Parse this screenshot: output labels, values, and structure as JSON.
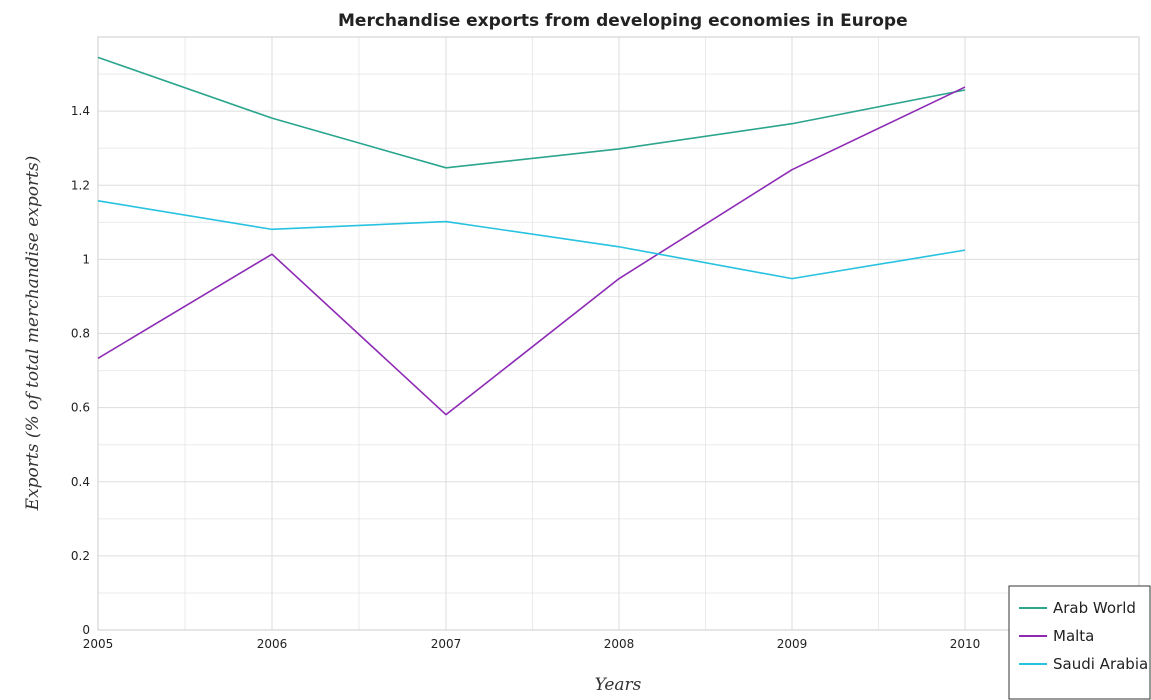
{
  "chart_data": {
    "type": "line",
    "title": "Merchandise exports from developing economies in Europe",
    "xlabel": "Years",
    "ylabel": "Exports (% of total merchandise exports)",
    "x": [
      "2005",
      "2006",
      "2007",
      "2008",
      "2009",
      "2010"
    ],
    "ylim": [
      0,
      1.6
    ],
    "yticks": [
      "0",
      "0.2",
      "0.4",
      "0.6",
      "0.8",
      "1",
      "1.2",
      "1.4"
    ],
    "grid": true,
    "legend_position": "bottom-right",
    "series": [
      {
        "name": "Arab World",
        "color": "#2ca58d",
        "values": [
          1.545,
          1.381,
          1.247,
          1.298,
          1.366,
          1.457
        ]
      },
      {
        "name": "Malta",
        "color": "#8e2bb5",
        "values": [
          0.733,
          1.014,
          0.581,
          0.948,
          1.242,
          1.465
        ]
      },
      {
        "name": "Saudi Arabia",
        "color": "#27c2e0",
        "values": [
          1.158,
          1.081,
          1.102,
          1.034,
          0.948,
          1.025
        ]
      }
    ]
  }
}
